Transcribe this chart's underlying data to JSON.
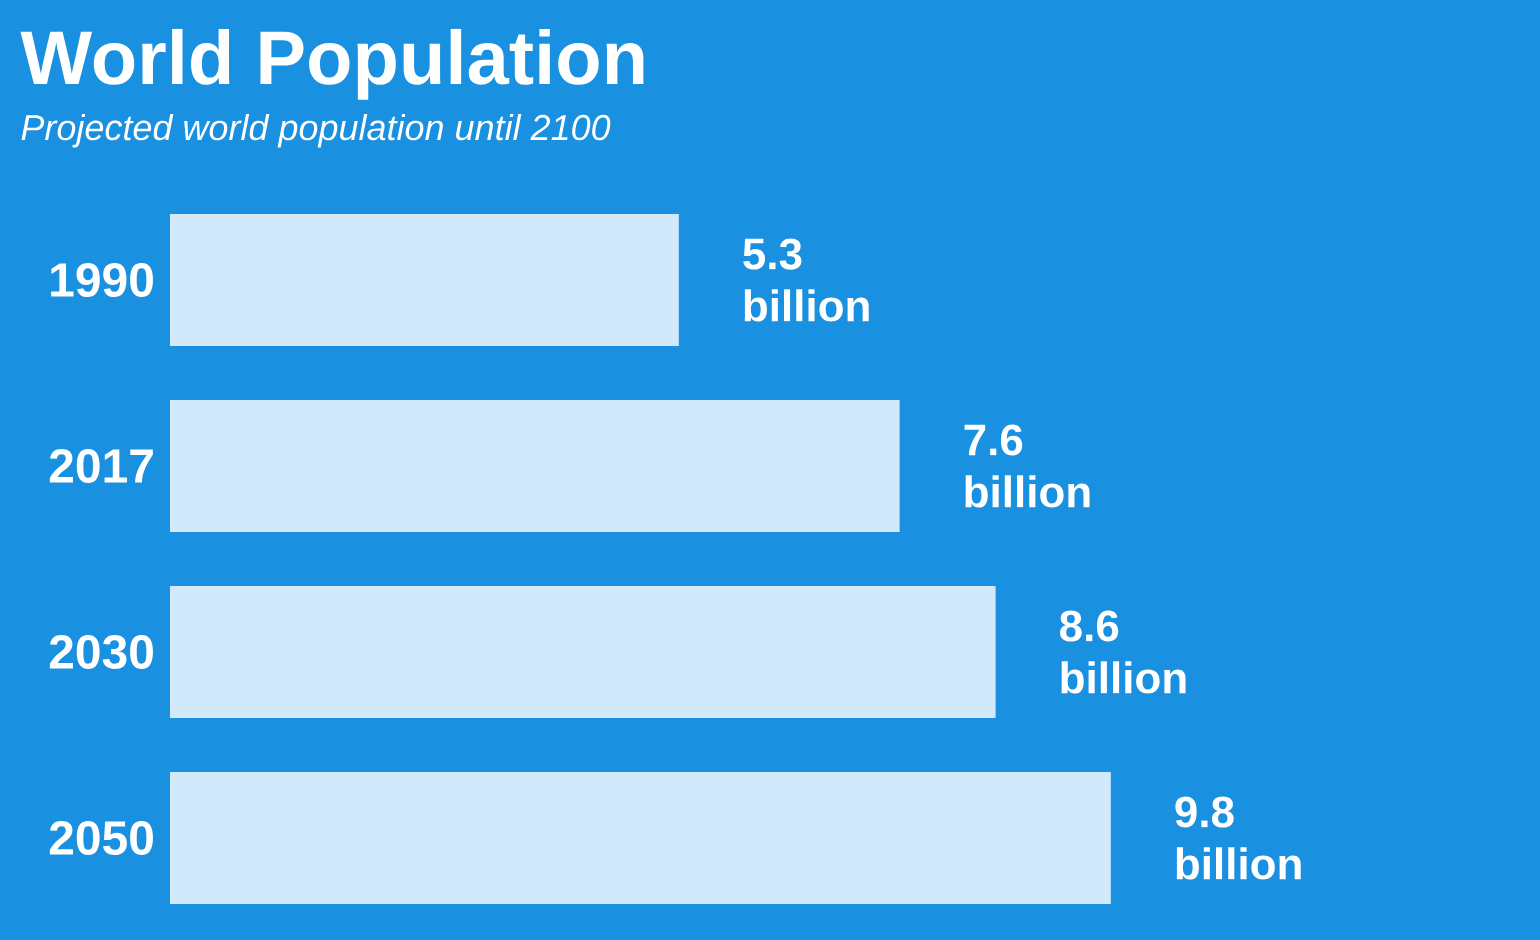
{
  "chart_data": {
    "type": "bar",
    "orientation": "horizontal",
    "title": "World Population",
    "subtitle": "Projected world population until 2100",
    "categories": [
      "1990",
      "2017",
      "2030",
      "2050"
    ],
    "values": [
      5.3,
      7.6,
      8.6,
      9.8
    ],
    "value_labels": [
      "5.3 billion",
      "7.6 billion",
      "8.6 billion",
      "9.8 billion"
    ],
    "color": "#d2e9fb",
    "tick_labels": "y"
  }
}
